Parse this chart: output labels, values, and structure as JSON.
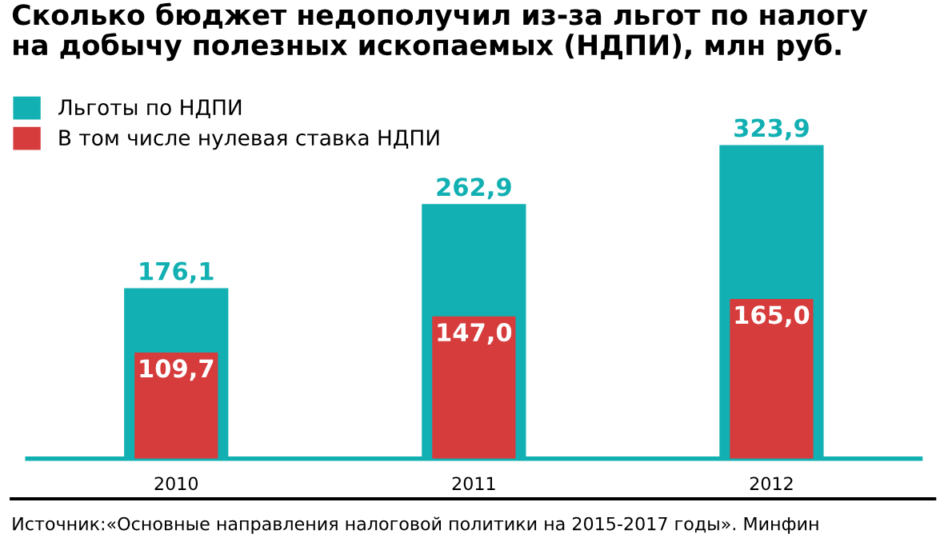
{
  "chart_data": {
    "type": "bar",
    "title": "Сколько бюджет недополучил из-за льгот по налогу\nна добычу полезных ископаемых (НДПИ), млн руб.",
    "categories": [
      "2010",
      "2011",
      "2012"
    ],
    "series": [
      {
        "name": "Льготы по НДПИ",
        "color": "#12b0b2",
        "values": [
          176.1,
          262.9,
          323.9
        ],
        "value_labels": [
          "176,1",
          "262,9",
          "323,9"
        ]
      },
      {
        "name": "В том числе нулевая ставка НДПИ",
        "color": "#d63c3c",
        "values": [
          109.7,
          147.0,
          165.0
        ],
        "value_labels": [
          "109,7",
          "147,0",
          "165,0"
        ]
      }
    ],
    "legend": "top left",
    "grid": false,
    "annotations": [
      "Источник:«Основные направления налоговой политики на 2015-2017 годы». Минфин"
    ]
  }
}
